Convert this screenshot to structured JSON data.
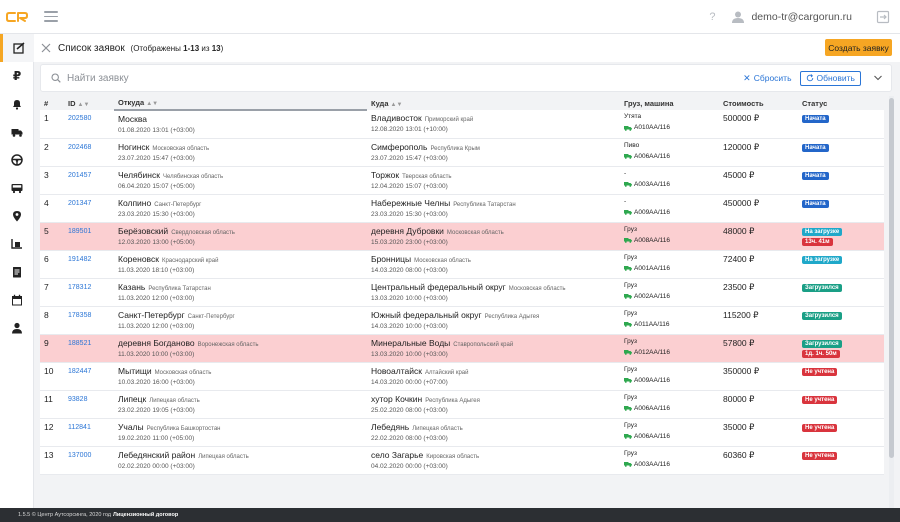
{
  "app": {
    "version_text": "1.5.5 © Центр Аутсорсинга, 2020 год",
    "license_link": "Лицензионный договор"
  },
  "topbar": {
    "help": "?",
    "user_email": "demo-tr@cargorun.ru"
  },
  "colors": {
    "accent": "#f6a623",
    "link": "#2a75d6",
    "late_row": "#fbcfd1",
    "status_started": "#2366c9",
    "status_loading": "#1fa8c9",
    "status_loaded": "#1a9f86",
    "status_not_counted": "#d9343d"
  },
  "sidebar": {
    "items": [
      {
        "name": "orders-icon"
      },
      {
        "name": "ruble-icon",
        "glyph": "₽"
      },
      {
        "name": "bell-icon"
      },
      {
        "name": "truck-icon"
      },
      {
        "name": "steering-wheel-icon"
      },
      {
        "name": "bus-icon"
      },
      {
        "name": "map-pin-icon"
      },
      {
        "name": "forklift-icon"
      },
      {
        "name": "document-icon"
      },
      {
        "name": "calendar-icon"
      },
      {
        "name": "user-icon"
      }
    ]
  },
  "header": {
    "title": "Список заявок",
    "count_prefix": "(Отображены ",
    "count_range": "1-13",
    "count_mid": " из ",
    "count_total": "13",
    "count_suffix": ")",
    "create_label": "Создать заявку"
  },
  "search": {
    "placeholder": "Найти заявку",
    "reset_label": "Сбросить",
    "refresh_label": "Обновить"
  },
  "table": {
    "columns": [
      "#",
      "ID",
      "Откуда",
      "Куда",
      "Груз, машина",
      "Стоимость",
      "Статус"
    ],
    "rows": [
      {
        "n": "1",
        "id": "202580",
        "from_city": "Москва",
        "from_region": "",
        "from_dt": "01.08.2020 13:01 (+03:00)",
        "to_city": "Владивосток",
        "to_region": "Приморский край",
        "to_dt": "12.08.2020 13:01 (+10:00)",
        "cargo": "Утята",
        "plate": "А010АА/116",
        "price": "500000 ₽",
        "status": "Начата",
        "status_type": "started",
        "delay": "",
        "late": false
      },
      {
        "n": "2",
        "id": "202468",
        "from_city": "Ногинск",
        "from_region": "Московская область",
        "from_dt": "23.07.2020 15:47 (+03:00)",
        "to_city": "Симферополь",
        "to_region": "Республика Крым",
        "to_dt": "23.07.2020 15:47 (+03:00)",
        "cargo": "Пиво",
        "plate": "А006АА/116",
        "price": "120000 ₽",
        "status": "Начата",
        "status_type": "started",
        "delay": "",
        "late": false
      },
      {
        "n": "3",
        "id": "201457",
        "from_city": "Челябинск",
        "from_region": "Челябинская область",
        "from_dt": "06.04.2020 15:07 (+05:00)",
        "to_city": "Торжок",
        "to_region": "Тверская область",
        "to_dt": "12.04.2020 15:07 (+03:00)",
        "cargo": "-",
        "plate": "А003АА/116",
        "price": "45000 ₽",
        "status": "Начата",
        "status_type": "started",
        "delay": "",
        "late": false
      },
      {
        "n": "4",
        "id": "201347",
        "from_city": "Колпино",
        "from_region": "Санкт-Петербург",
        "from_dt": "23.03.2020 15:30 (+03:00)",
        "to_city": "Набережные Челны",
        "to_region": "Республика Татарстан",
        "to_dt": "23.03.2020 15:30 (+03:00)",
        "cargo": "-",
        "plate": "А009АА/116",
        "price": "450000 ₽",
        "status": "Начата",
        "status_type": "started",
        "delay": "",
        "late": false
      },
      {
        "n": "5",
        "id": "189501",
        "from_city": "Берёзовский",
        "from_region": "Свердловская область",
        "from_dt": "12.03.2020 13:00 (+05:00)",
        "to_city": "деревня Дубровки",
        "to_region": "Московская область",
        "to_dt": "15.03.2020 23:00 (+03:00)",
        "cargo": "Груз",
        "plate": "А008АА/116",
        "price": "48000 ₽",
        "status": "На загрузке",
        "status_type": "loading",
        "delay": "13ч. 41м",
        "late": true
      },
      {
        "n": "6",
        "id": "191482",
        "from_city": "Кореновск",
        "from_region": "Краснодарский край",
        "from_dt": "11.03.2020 18:10 (+03:00)",
        "to_city": "Бронницы",
        "to_region": "Московская область",
        "to_dt": "14.03.2020 08:00 (+03:00)",
        "cargo": "Груз",
        "plate": "А001АА/116",
        "price": "72400 ₽",
        "status": "На загрузке",
        "status_type": "loading",
        "delay": "",
        "late": false
      },
      {
        "n": "7",
        "id": "178312",
        "from_city": "Казань",
        "from_region": "Республика Татарстан",
        "from_dt": "11.03.2020 12:00 (+03:00)",
        "to_city": "Центральный федеральный округ",
        "to_region": "Московская область",
        "to_dt": "13.03.2020 10:00 (+03:00)",
        "cargo": "Груз",
        "plate": "А002АА/116",
        "price": "23500 ₽",
        "status": "Загрузился",
        "status_type": "loaded",
        "delay": "",
        "late": false
      },
      {
        "n": "8",
        "id": "178358",
        "from_city": "Санкт-Петербург",
        "from_region": "Санкт-Петербург",
        "from_dt": "11.03.2020 12:00 (+03:00)",
        "to_city": "Южный федеральный округ",
        "to_region": "Республика Адыгея",
        "to_dt": "14.03.2020 10:00 (+03:00)",
        "cargo": "Груз",
        "plate": "А011АА/116",
        "price": "115200 ₽",
        "status": "Загрузился",
        "status_type": "loaded",
        "delay": "",
        "late": false
      },
      {
        "n": "9",
        "id": "188521",
        "from_city": "деревня Богданово",
        "from_region": "Воронежская область",
        "from_dt": "11.03.2020 10:00 (+03:00)",
        "to_city": "Минеральные Воды",
        "to_region": "Ставропольский край",
        "to_dt": "13.03.2020 10:00 (+03:00)",
        "cargo": "Груз",
        "plate": "А012АА/116",
        "price": "57800 ₽",
        "status": "Загрузился",
        "status_type": "loaded",
        "delay": "1д. 1ч. 50м",
        "late": true
      },
      {
        "n": "10",
        "id": "182447",
        "from_city": "Мытищи",
        "from_region": "Московская область",
        "from_dt": "10.03.2020 16:00 (+03:00)",
        "to_city": "Новоалтайск",
        "to_region": "Алтайский край",
        "to_dt": "14.03.2020 00:00 (+07:00)",
        "cargo": "Груз",
        "plate": "А009АА/116",
        "price": "350000 ₽",
        "status": "Не учтена",
        "status_type": "notcounted",
        "delay": "",
        "late": false
      },
      {
        "n": "11",
        "id": "93828",
        "from_city": "Липецк",
        "from_region": "Липецкая область",
        "from_dt": "23.02.2020 19:05 (+03:00)",
        "to_city": "хутор Кочкин",
        "to_region": "Республика Адыгея",
        "to_dt": "25.02.2020 08:00 (+03:00)",
        "cargo": "Груз",
        "plate": "А006АА/116",
        "price": "80000 ₽",
        "status": "Не учтена",
        "status_type": "notcounted",
        "delay": "",
        "late": false
      },
      {
        "n": "12",
        "id": "112841",
        "from_city": "Учалы",
        "from_region": "Республика Башкортостан",
        "from_dt": "19.02.2020 11:00 (+05:00)",
        "to_city": "Лебедянь",
        "to_region": "Липецкая область",
        "to_dt": "22.02.2020 08:00 (+03:00)",
        "cargo": "Груз",
        "plate": "А006АА/116",
        "price": "35000 ₽",
        "status": "Не учтена",
        "status_type": "notcounted",
        "delay": "",
        "late": false
      },
      {
        "n": "13",
        "id": "137000",
        "from_city": "Лебедянский район",
        "from_region": "Липецкая область",
        "from_dt": "02.02.2020 00:00 (+03:00)",
        "to_city": "село Загарье",
        "to_region": "Кировская область",
        "to_dt": "04.02.2020 00:00 (+03:00)",
        "cargo": "Груз",
        "plate": "А003АА/116",
        "price": "60360 ₽",
        "status": "Не учтена",
        "status_type": "notcounted",
        "delay": "",
        "late": false
      }
    ]
  }
}
